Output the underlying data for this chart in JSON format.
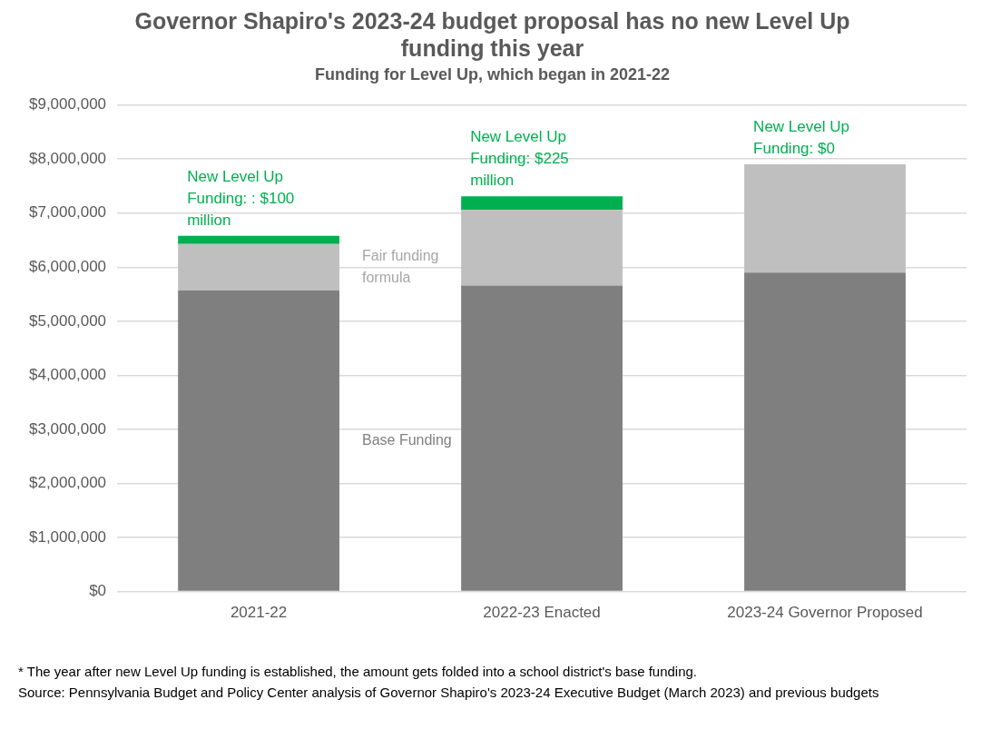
{
  "chart_data": {
    "type": "bar",
    "title": "Governor Shapiro's 2023-24 budget proposal has no new Level Up funding this year",
    "subtitle": "Funding for Level Up, which began in 2021-22",
    "categories": [
      "2021-22",
      "2022-23 Enacted",
      "2023-24 Governor Proposed"
    ],
    "stacked": true,
    "series": [
      {
        "name": "Base Funding",
        "color": "#7f7f7f",
        "values": [
          5570000,
          5660000,
          5900000
        ]
      },
      {
        "name": "Fair funding formula",
        "color": "#bfbfbf",
        "values": [
          860000,
          1400000,
          2000000
        ]
      },
      {
        "color": "#00b050",
        "values": [
          150000,
          250000,
          0
        ]
      }
    ],
    "ylim": [
      0,
      9000000
    ],
    "yticks": [
      {
        "value": 0,
        "label": "$0"
      },
      {
        "value": 1000000,
        "label": "$1,000,000"
      },
      {
        "value": 2000000,
        "label": "$2,000,000"
      },
      {
        "value": 3000000,
        "label": "$3,000,000"
      },
      {
        "value": 4000000,
        "label": "$4,000,000"
      },
      {
        "value": 5000000,
        "label": "$5,000,000"
      },
      {
        "value": 6000000,
        "label": "$6,000,000"
      },
      {
        "value": 7000000,
        "label": "$7,000,000"
      },
      {
        "value": 8000000,
        "label": "$8,000,000"
      },
      {
        "value": 9000000,
        "label": "$9,000,000"
      }
    ],
    "grid": "y",
    "legend": false,
    "annotations": [
      {
        "text": "New Level Up Funding: : $100 million",
        "x": "2021-22",
        "y": 6580000
      },
      {
        "text": "New Level Up Funding: $225 million",
        "x": "2022-23 Enacted",
        "y": 7310000
      },
      {
        "text": "New Level Up Funding: $0",
        "x": "2023-24 Governor Proposed",
        "y": 7900000
      },
      "* The year after new Level Up funding is established, the amount gets folded into a school district's base funding.",
      "Source: Pennsylvania Budget and Policy Center analysis of Governor Shapiro's 2023-24 Executive Budget (March 2023) and previous budgets"
    ]
  }
}
